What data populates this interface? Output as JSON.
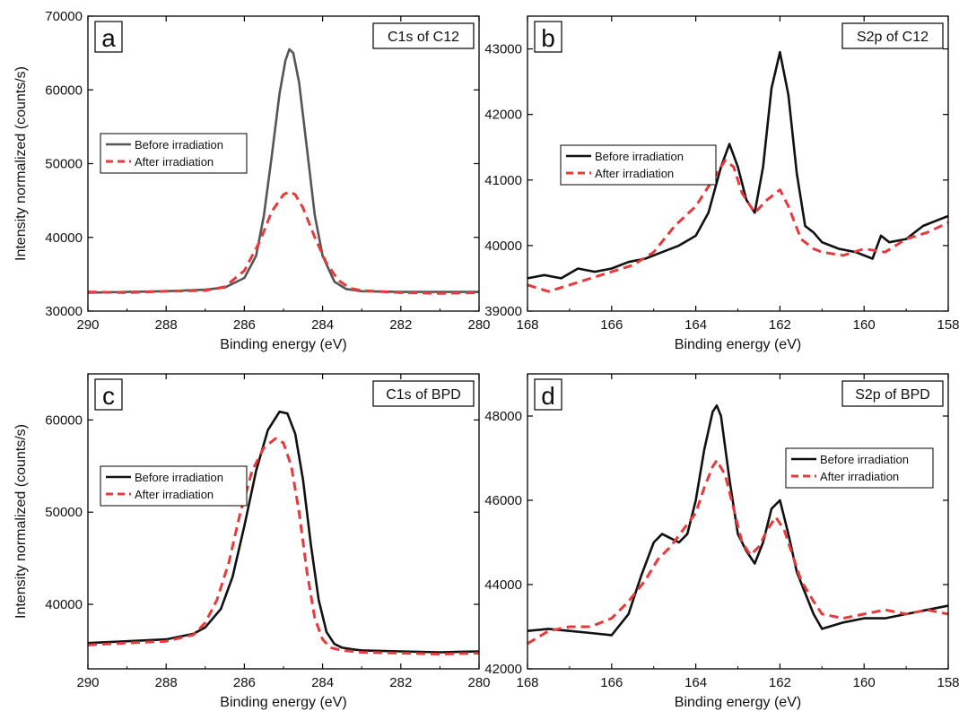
{
  "chart_data": [
    {
      "type": "line",
      "panel_letter": "a",
      "title": "C1s of C12",
      "xlabel": "Binding energy (eV)",
      "ylabel": "Intensity normalized (counts/s)",
      "xlim": [
        290,
        280
      ],
      "ylim": [
        30000,
        70000
      ],
      "xticks": [
        "290",
        "288",
        "286",
        "284",
        "282",
        "280"
      ],
      "yticks": [
        "30000",
        "40000",
        "50000",
        "60000",
        "70000"
      ],
      "legend_position": "center-left",
      "series": [
        {
          "name": "Before irradiation",
          "color": "#555555",
          "style": "solid",
          "x": [
            290,
            289,
            288,
            287,
            286.5,
            286,
            285.7,
            285.5,
            285.3,
            285.1,
            284.95,
            284.85,
            284.75,
            284.6,
            284.4,
            284.2,
            284.0,
            283.7,
            283.4,
            283,
            282,
            281,
            280
          ],
          "y": [
            32500,
            32600,
            32700,
            32900,
            33200,
            34500,
            37500,
            43000,
            51000,
            59500,
            64000,
            65500,
            65000,
            61000,
            52000,
            43000,
            37500,
            34000,
            33000,
            32700,
            32600,
            32600,
            32600
          ]
        },
        {
          "name": "After irradiation",
          "color": "#e8393b",
          "style": "dashed",
          "x": [
            290,
            289,
            288,
            287,
            286.5,
            286,
            285.6,
            285.3,
            285.0,
            284.85,
            284.7,
            284.5,
            284.2,
            283.9,
            283.6,
            283.3,
            283,
            282,
            281,
            280
          ],
          "y": [
            32600,
            32500,
            32700,
            32800,
            33300,
            35500,
            39500,
            43500,
            45800,
            46200,
            45800,
            44000,
            40000,
            36500,
            34200,
            33100,
            32800,
            32500,
            32400,
            32500
          ]
        }
      ]
    },
    {
      "type": "line",
      "panel_letter": "b",
      "title": "S2p of C12",
      "xlabel": "Binding energy (eV)",
      "ylabel": "",
      "xlim": [
        168,
        158
      ],
      "ylim": [
        39000,
        43500
      ],
      "xticks": [
        "168",
        "166",
        "164",
        "162",
        "160",
        "158"
      ],
      "yticks": [
        "39000",
        "40000",
        "41000",
        "42000",
        "43000"
      ],
      "legend_position": "center-left",
      "series": [
        {
          "name": "Before irradiation",
          "color": "#111111",
          "style": "solid",
          "x": [
            168,
            167.6,
            167.2,
            166.8,
            166.4,
            166,
            165.6,
            165.2,
            164.8,
            164.4,
            164.0,
            163.7,
            163.4,
            163.2,
            163.0,
            162.8,
            162.6,
            162.4,
            162.2,
            162.0,
            161.8,
            161.6,
            161.4,
            161.2,
            161,
            160.6,
            160.2,
            159.8,
            159.6,
            159.4,
            159,
            158.6,
            158.2,
            158
          ],
          "y": [
            39500,
            39550,
            39500,
            39650,
            39600,
            39650,
            39750,
            39800,
            39900,
            40000,
            40150,
            40500,
            41200,
            41550,
            41200,
            40700,
            40500,
            41200,
            42400,
            42950,
            42300,
            41100,
            40300,
            40200,
            40050,
            39950,
            39900,
            39800,
            40150,
            40050,
            40100,
            40300,
            40400,
            40450
          ]
        },
        {
          "name": "After irradiation",
          "color": "#e8393b",
          "style": "dashed",
          "x": [
            168,
            167.5,
            167,
            166.5,
            166,
            165.5,
            165,
            164.5,
            164,
            163.6,
            163.3,
            163.1,
            162.9,
            162.6,
            162.3,
            162.0,
            161.8,
            161.5,
            161.2,
            161,
            160.5,
            160,
            159.5,
            159,
            158.5,
            158
          ],
          "y": [
            39400,
            39300,
            39400,
            39500,
            39600,
            39700,
            39900,
            40300,
            40600,
            41000,
            41300,
            41200,
            40800,
            40500,
            40700,
            40850,
            40600,
            40100,
            39950,
            39900,
            39850,
            39950,
            39900,
            40100,
            40200,
            40350
          ]
        }
      ]
    },
    {
      "type": "line",
      "panel_letter": "c",
      "title": "C1s of BPD",
      "xlabel": "Binding energy (eV)",
      "ylabel": "Intensity normalized (counts/s)",
      "xlim": [
        290,
        280
      ],
      "ylim": [
        33000,
        65000
      ],
      "xticks": [
        "290",
        "288",
        "286",
        "284",
        "282",
        "280"
      ],
      "yticks": [
        "40000",
        "50000",
        "60000"
      ],
      "legend_position": "center-left",
      "series": [
        {
          "name": "Before irradiation",
          "color": "#111111",
          "style": "solid",
          "x": [
            290,
            289,
            288,
            287.3,
            287,
            286.6,
            286.3,
            286.0,
            285.7,
            285.4,
            285.1,
            284.9,
            284.7,
            284.5,
            284.3,
            284.1,
            283.9,
            283.7,
            283.5,
            283.2,
            283,
            282,
            281,
            280
          ],
          "y": [
            35800,
            36000,
            36200,
            36800,
            37500,
            39500,
            43000,
            48500,
            54500,
            58900,
            60900,
            60700,
            58500,
            53500,
            46500,
            40500,
            37000,
            35700,
            35300,
            35100,
            35000,
            34900,
            34800,
            34900
          ]
        },
        {
          "name": "After irradiation",
          "color": "#e8393b",
          "style": "dashed",
          "x": [
            290,
            289,
            288,
            287.3,
            287,
            286.7,
            286.4,
            286.1,
            285.8,
            285.5,
            285.2,
            285.0,
            284.8,
            284.6,
            284.4,
            284.2,
            284.0,
            283.8,
            283.5,
            283,
            282,
            281,
            280
          ],
          "y": [
            35600,
            35800,
            36000,
            36700,
            38000,
            40500,
            44500,
            50000,
            54500,
            57000,
            58000,
            57500,
            55000,
            50000,
            43500,
            38500,
            36200,
            35300,
            35000,
            34800,
            34700,
            34600,
            34700
          ]
        }
      ]
    },
    {
      "type": "line",
      "panel_letter": "d",
      "title": "S2p of BPD",
      "xlabel": "Binding energy (eV)",
      "ylabel": "",
      "xlim": [
        168,
        158
      ],
      "ylim": [
        42000,
        49000
      ],
      "xticks": [
        "168",
        "166",
        "164",
        "162",
        "160",
        "158"
      ],
      "yticks": [
        "42000",
        "44000",
        "46000",
        "48000"
      ],
      "legend_position": "top-right",
      "series": [
        {
          "name": "Before irradiation",
          "color": "#111111",
          "style": "solid",
          "x": [
            168,
            167.5,
            167,
            166.5,
            166,
            165.6,
            165.3,
            165.0,
            164.8,
            164.6,
            164.4,
            164.2,
            164.0,
            163.8,
            163.6,
            163.5,
            163.4,
            163.2,
            163.0,
            162.8,
            162.6,
            162.4,
            162.2,
            162.0,
            161.8,
            161.6,
            161.4,
            161.2,
            161.0,
            160.5,
            160,
            159.5,
            159,
            158.5,
            158
          ],
          "y": [
            42900,
            42950,
            42900,
            42850,
            42800,
            43300,
            44200,
            45000,
            45200,
            45100,
            45000,
            45200,
            46000,
            47200,
            48100,
            48250,
            48000,
            46500,
            45200,
            44800,
            44500,
            45000,
            45800,
            46000,
            45200,
            44300,
            43800,
            43300,
            42950,
            43100,
            43200,
            43200,
            43300,
            43400,
            43500
          ]
        },
        {
          "name": "After irradiation",
          "color": "#e8393b",
          "style": "dashed",
          "x": [
            168,
            167.5,
            167,
            166.5,
            166,
            165.6,
            165.2,
            164.9,
            164.6,
            164.3,
            164.0,
            163.8,
            163.6,
            163.5,
            163.3,
            163.1,
            162.9,
            162.7,
            162.5,
            162.3,
            162.1,
            161.9,
            161.7,
            161.5,
            161.2,
            161.0,
            160.5,
            160,
            159.5,
            159,
            158.5,
            158
          ],
          "y": [
            42600,
            42900,
            43000,
            43000,
            43200,
            43600,
            44100,
            44600,
            44900,
            45300,
            45700,
            46300,
            46800,
            46950,
            46600,
            45800,
            45000,
            44700,
            44900,
            45300,
            45600,
            45300,
            44700,
            44100,
            43600,
            43300,
            43200,
            43300,
            43400,
            43300,
            43400,
            43300
          ]
        }
      ]
    }
  ]
}
